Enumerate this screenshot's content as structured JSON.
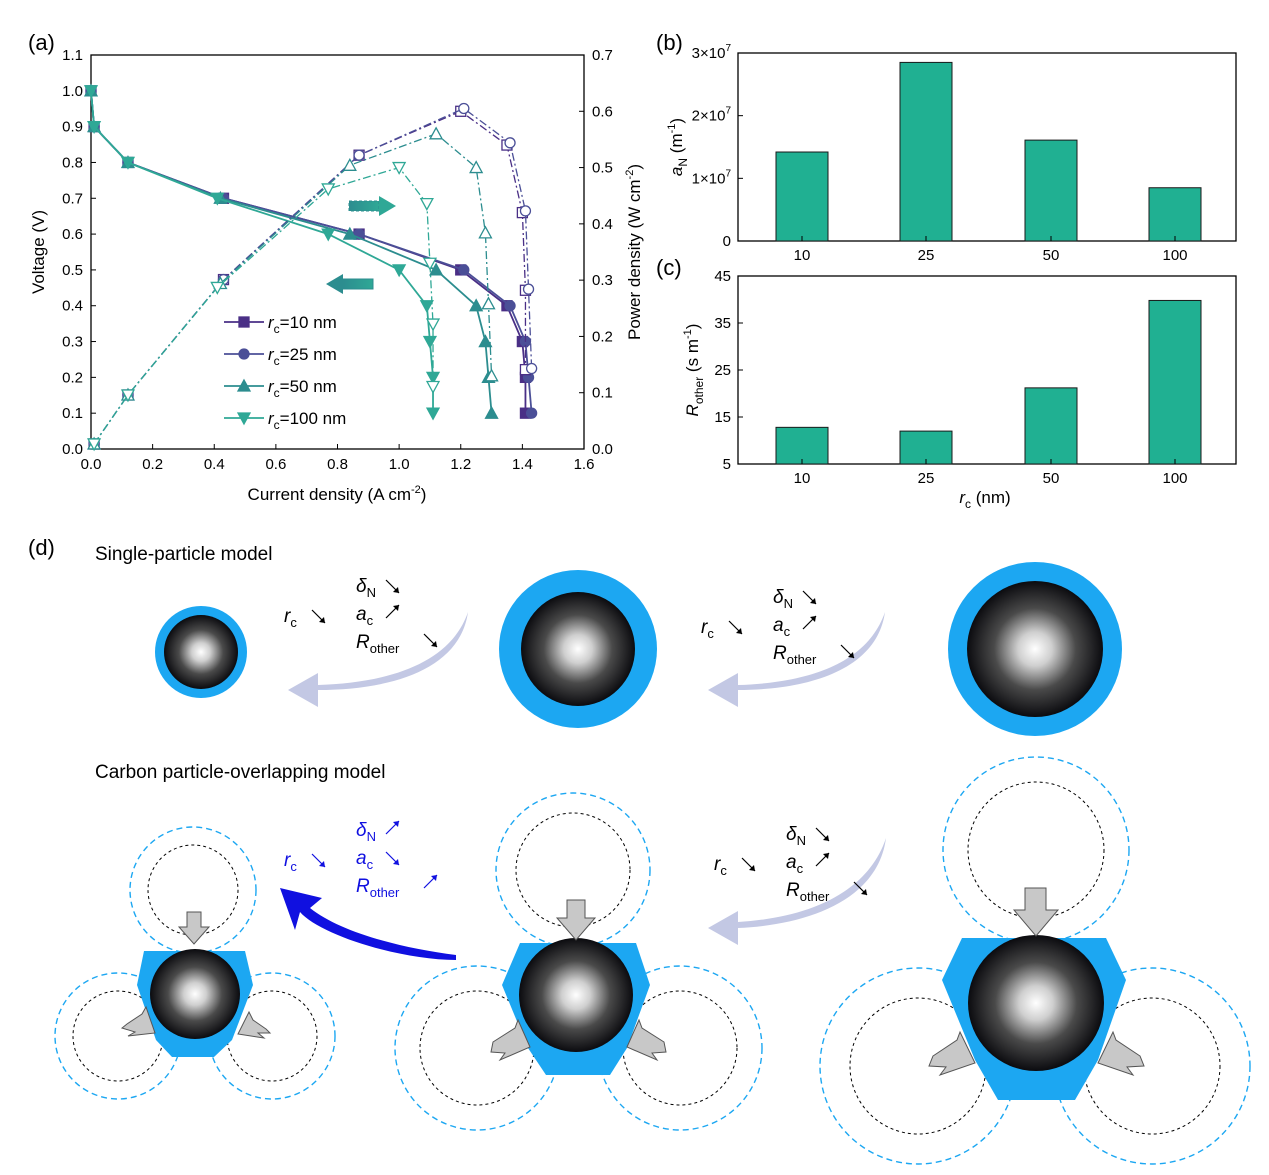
{
  "colors": {
    "c10": "#4a2f86",
    "c25": "#4b4f97",
    "c50": "#2c8d8f",
    "c100": "#2fa896",
    "bar": "#20b092",
    "shell": "#1ca7f2",
    "core": "#0b0b0f",
    "arrow_light": "#c3c8e4",
    "arrow_blue": "#1010e0"
  },
  "panel_a": {
    "label": "(a)",
    "xlabel": "Current density (A cm",
    "xlabel_sup": "-2",
    "xlabel_end": ")",
    "ylabel": "Voltage (V)",
    "y2label": "Power density (W cm",
    "y2label_sup": "-2",
    "y2label_end": ")",
    "xticks": [
      "0.0",
      "0.2",
      "0.4",
      "0.6",
      "0.8",
      "1.0",
      "1.2",
      "1.4",
      "1.6"
    ],
    "yticks": [
      "0.0",
      "0.1",
      "0.2",
      "0.3",
      "0.4",
      "0.5",
      "0.6",
      "0.7",
      "0.8",
      "0.9",
      "1.0",
      "1.1"
    ],
    "y2ticks": [
      "0.0",
      "0.1",
      "0.2",
      "0.3",
      "0.4",
      "0.5",
      "0.6",
      "0.7"
    ],
    "legend": [
      {
        "sym": "r",
        "sub": "c",
        "text": "=10 nm"
      },
      {
        "sym": "r",
        "sub": "c",
        "text": "=25 nm"
      },
      {
        "sym": "r",
        "sub": "c",
        "text": "=50 nm"
      },
      {
        "sym": "r",
        "sub": "c",
        "text": "=100 nm"
      }
    ]
  },
  "panel_b": {
    "label": "(b)",
    "ylabel_sym": "a",
    "ylabel_sub": "N",
    "ylabel_unit": "(m",
    "ylabel_sup": "-1",
    "ylabel_end": ")",
    "yticks": [
      {
        "base": "0",
        "exp": ""
      },
      {
        "base": "1×10",
        "exp": "7"
      },
      {
        "base": "2×10",
        "exp": "7"
      },
      {
        "base": "3×10",
        "exp": "7"
      }
    ]
  },
  "panel_c": {
    "label": "(c)",
    "ylabel_sym": "R",
    "ylabel_sub": "other",
    "ylabel_unit": "(s m",
    "ylabel_sup": "-1",
    "ylabel_end": ")",
    "yticks": [
      "5",
      "15",
      "25",
      "35",
      "45"
    ],
    "xlabel_sym": "r",
    "xlabel_sub": "c",
    "xlabel_unit": "(nm)"
  },
  "panel_d": {
    "label": "(d)",
    "title_single": "Single-particle model",
    "title_overlap": "Carbon particle-overlapping model",
    "annotations": [
      {
        "delta": "δ",
        "delta_sub": "N",
        "a": "a",
        "a_sub": "c",
        "R": "R",
        "R_sub": "other",
        "r": "r",
        "r_sub": "c"
      }
    ]
  },
  "chart_data": [
    {
      "type": "line",
      "title": "",
      "xlabel": "Current density (A cm-2)",
      "ylabel": "Voltage (V)",
      "y2label": "Power density (W cm-2)",
      "xlim": [
        0,
        1.6
      ],
      "ylim": [
        0,
        1.1
      ],
      "y2lim": [
        0,
        0.7
      ],
      "series": [
        {
          "name": "rc=10 nm",
          "axis": "voltage",
          "x": [
            0.0,
            0.01,
            0.12,
            0.43,
            0.87,
            1.2,
            1.35,
            1.4,
            1.41,
            1.41
          ],
          "y": [
            1.0,
            0.9,
            0.8,
            0.7,
            0.6,
            0.5,
            0.4,
            0.3,
            0.2,
            0.1
          ]
        },
        {
          "name": "rc=25 nm",
          "axis": "voltage",
          "x": [
            0.0,
            0.01,
            0.12,
            0.43,
            0.87,
            1.21,
            1.36,
            1.41,
            1.42,
            1.43
          ],
          "y": [
            1.0,
            0.9,
            0.8,
            0.7,
            0.6,
            0.5,
            0.4,
            0.3,
            0.2,
            0.1
          ]
        },
        {
          "name": "rc=50 nm",
          "axis": "voltage",
          "x": [
            0.0,
            0.01,
            0.12,
            0.42,
            0.84,
            1.12,
            1.25,
            1.28,
            1.29,
            1.3
          ],
          "y": [
            1.0,
            0.9,
            0.8,
            0.7,
            0.6,
            0.5,
            0.4,
            0.3,
            0.2,
            0.1
          ]
        },
        {
          "name": "rc=100 nm",
          "axis": "voltage",
          "x": [
            0.0,
            0.01,
            0.12,
            0.41,
            0.77,
            1.0,
            1.09,
            1.1,
            1.11,
            1.11
          ],
          "y": [
            1.0,
            0.9,
            0.8,
            0.7,
            0.6,
            0.5,
            0.4,
            0.3,
            0.2,
            0.1
          ]
        },
        {
          "name": "rc=10 nm",
          "axis": "power",
          "x": [
            0.01,
            0.12,
            0.43,
            0.87,
            1.2,
            1.35,
            1.4,
            1.41,
            1.41
          ],
          "y": [
            0.009,
            0.096,
            0.301,
            0.522,
            0.6,
            0.54,
            0.42,
            0.282,
            0.141
          ]
        },
        {
          "name": "rc=25 nm",
          "axis": "power",
          "x": [
            0.01,
            0.12,
            0.43,
            0.87,
            1.21,
            1.36,
            1.41,
            1.42,
            1.43
          ],
          "y": [
            0.009,
            0.096,
            0.301,
            0.522,
            0.605,
            0.544,
            0.423,
            0.284,
            0.143
          ]
        },
        {
          "name": "rc=50 nm",
          "axis": "power",
          "x": [
            0.01,
            0.12,
            0.42,
            0.84,
            1.12,
            1.25,
            1.28,
            1.29,
            1.3
          ],
          "y": [
            0.009,
            0.096,
            0.294,
            0.504,
            0.56,
            0.5,
            0.384,
            0.258,
            0.13
          ]
        },
        {
          "name": "rc=100 nm",
          "axis": "power",
          "x": [
            0.01,
            0.12,
            0.41,
            0.77,
            1.0,
            1.09,
            1.1,
            1.11,
            1.11
          ],
          "y": [
            0.009,
            0.096,
            0.287,
            0.462,
            0.5,
            0.436,
            0.33,
            0.222,
            0.111
          ]
        }
      ],
      "legend": "center-left"
    },
    {
      "type": "bar",
      "title": "",
      "categories": [
        "10",
        "25",
        "50",
        "100"
      ],
      "values": [
        14200000,
        28500000,
        16100000,
        8500000
      ],
      "ylabel": "aN (m-1)",
      "ylim": [
        0,
        30000000
      ]
    },
    {
      "type": "bar",
      "title": "",
      "categories": [
        "10",
        "25",
        "50",
        "100"
      ],
      "values": [
        12.8,
        12.0,
        21.2,
        39.8
      ],
      "xlabel": "rc (nm)",
      "ylabel": "Rother (s m-1)",
      "ylim": [
        5,
        45
      ]
    }
  ]
}
